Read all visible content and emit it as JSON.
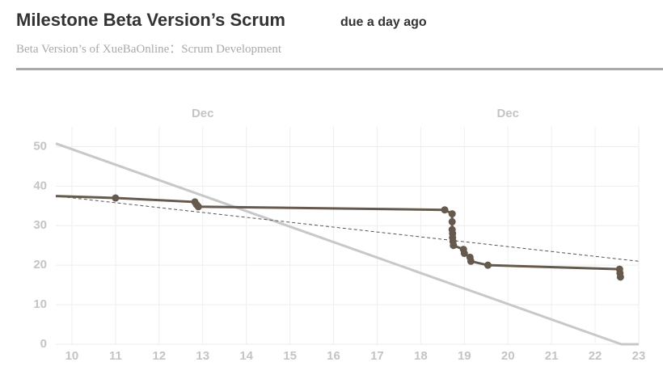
{
  "header": {
    "title": "Milestone Beta Version’s Scrum",
    "due": "due a day ago",
    "subtitle": "Beta Version’s of XueBaOnline：Scrum Development"
  },
  "chart_data": {
    "type": "line",
    "xlim": [
      9.63,
      23
    ],
    "xticks": [
      10,
      11,
      12,
      13,
      14,
      15,
      16,
      17,
      18,
      19,
      20,
      21,
      22,
      23
    ],
    "top_xticks": [
      {
        "value": 13,
        "label": "Dec"
      },
      {
        "value": 20,
        "label": "Dec"
      }
    ],
    "ylim": [
      0,
      55
    ],
    "yticks": [
      0,
      10,
      20,
      30,
      40,
      50
    ],
    "grid": true,
    "series": [
      {
        "color": "#c8c8c8",
        "width": 3,
        "markers": false,
        "x": [
          9.63,
          22.6,
          23
        ],
        "values": [
          50.8,
          0,
          0
        ]
      },
      {
        "color": "#555555",
        "width": 1,
        "dash": true,
        "markers": false,
        "x": [
          9.63,
          23
        ],
        "values": [
          37.5,
          21
        ]
      },
      {
        "color": "#665a4e",
        "width": 3,
        "markers": true,
        "x": [
          9.63,
          11,
          12.82,
          12.86,
          12.9,
          18.55,
          18.72,
          18.72,
          18.72,
          18.73,
          18.73,
          18.74,
          18.75,
          18.98,
          19.0,
          19.13,
          19.15,
          19.54,
          22.56,
          22.57,
          22.58
        ],
        "values": [
          37.5,
          37,
          36,
          35.3,
          34.8,
          34,
          33,
          31,
          29,
          28,
          27,
          26,
          25,
          24,
          23,
          22,
          21,
          20,
          19,
          18,
          17
        ]
      }
    ]
  }
}
